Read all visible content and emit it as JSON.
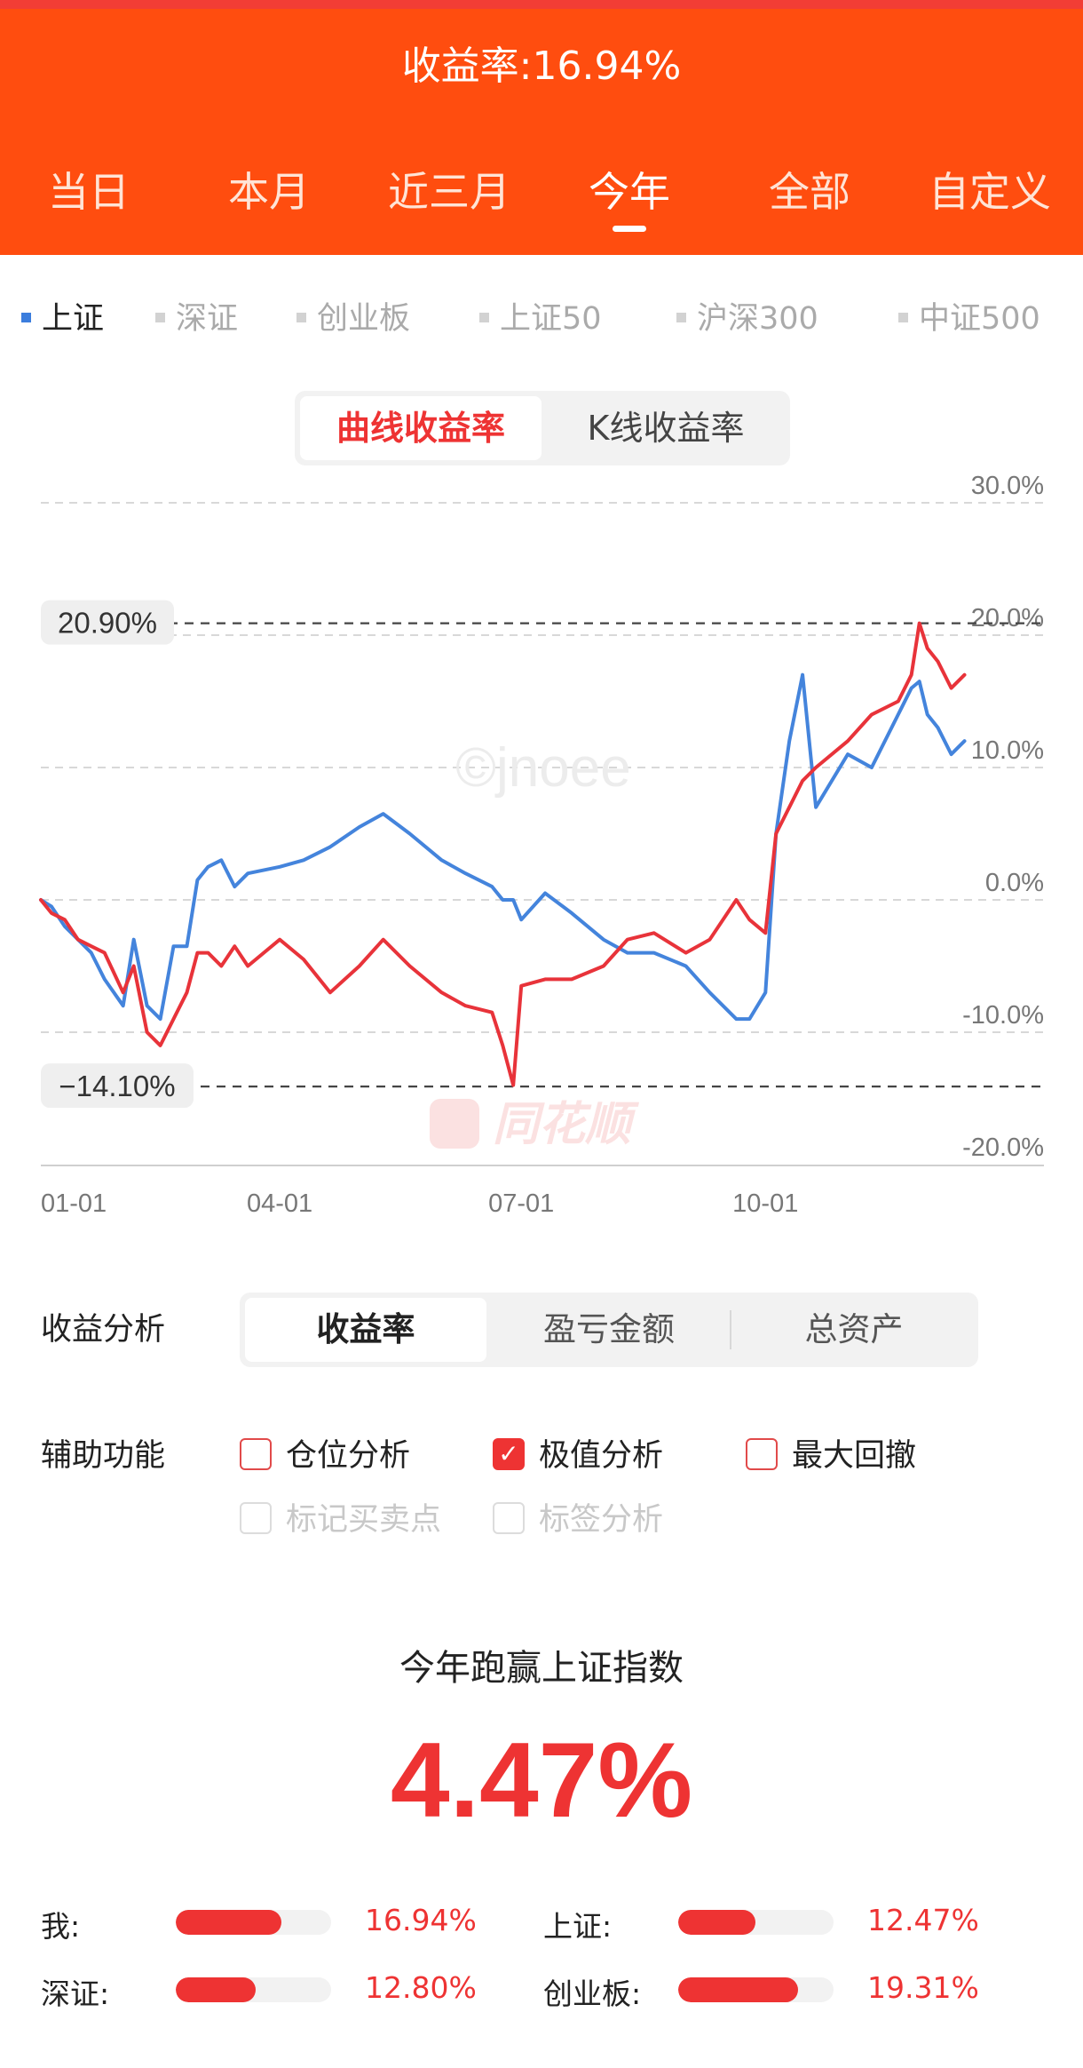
{
  "header": {
    "title": "收益率:16.94%",
    "tabs": [
      "当日",
      "本月",
      "近三月",
      "今年",
      "全部",
      "自定义"
    ],
    "active_tab": "今年"
  },
  "index_tabs": [
    "上证",
    "深证",
    "创业板",
    "上证50",
    "沪深300",
    "中证500"
  ],
  "active_index": "上证",
  "chart_mode": {
    "options": [
      "曲线收益率",
      "K线收益率"
    ],
    "active": "曲线收益率"
  },
  "chart_data": {
    "type": "line",
    "x_ticks": [
      "01-01",
      "04-01",
      "07-01",
      "10-01"
    ],
    "y_ticks": [
      "30.0%",
      "20.0%",
      "10.0%",
      "0.0%",
      "-10.0%",
      "-20.0%"
    ],
    "ylim": [
      -20,
      30
    ],
    "markers": [
      {
        "label": "20.90%",
        "value": 20.9
      },
      {
        "label": "−14.10%",
        "value": -14.1
      }
    ],
    "watermark": "©jnoee",
    "logo_text": "同花顺",
    "series": [
      {
        "color": "#e8333a",
        "x": [
          "01-01",
          "01-05",
          "01-10",
          "01-15",
          "01-20",
          "01-25",
          "02-01",
          "02-05",
          "02-10",
          "02-15",
          "02-20",
          "02-25",
          "03-01",
          "03-05",
          "03-10",
          "03-15",
          "03-20",
          "04-01",
          "04-10",
          "04-20",
          "05-01",
          "05-10",
          "05-20",
          "06-01",
          "06-10",
          "06-20",
          "06-24",
          "06-28",
          "07-01",
          "07-10",
          "07-20",
          "08-01",
          "08-10",
          "08-20",
          "09-01",
          "09-10",
          "09-20",
          "09-25",
          "10-01",
          "10-05",
          "10-10",
          "10-15",
          "10-20",
          "11-01",
          "11-10",
          "11-20",
          "11-25",
          "11-28",
          "12-01",
          "12-05",
          "12-10",
          "12-15"
        ],
        "y": [
          0,
          -1,
          -1.5,
          -3,
          -3.5,
          -4,
          -7,
          -5,
          -10,
          -11,
          -9,
          -7,
          -4,
          -4,
          -5,
          -3.5,
          -5,
          -3,
          -4.5,
          -7,
          -5,
          -3,
          -5,
          -7,
          -8,
          -8.5,
          -11,
          -14,
          -6.5,
          -6,
          -6,
          -5,
          -3,
          -2.5,
          -4,
          -3,
          0,
          -1.5,
          -2.5,
          5,
          7,
          9,
          10,
          12,
          14,
          15,
          17,
          20.9,
          19,
          18,
          16,
          17
        ]
      },
      {
        "color": "#4484dc",
        "x": [
          "01-01",
          "01-05",
          "01-10",
          "01-15",
          "01-20",
          "01-25",
          "02-01",
          "02-05",
          "02-10",
          "02-15",
          "02-20",
          "02-25",
          "03-01",
          "03-05",
          "03-10",
          "03-15",
          "03-20",
          "04-01",
          "04-10",
          "04-20",
          "05-01",
          "05-10",
          "05-20",
          "06-01",
          "06-10",
          "06-20",
          "06-24",
          "06-28",
          "07-01",
          "07-10",
          "07-20",
          "08-01",
          "08-10",
          "08-20",
          "09-01",
          "09-10",
          "09-20",
          "09-25",
          "10-01",
          "10-05",
          "10-10",
          "10-15",
          "10-20",
          "11-01",
          "11-10",
          "11-20",
          "11-25",
          "11-28",
          "12-01",
          "12-05",
          "12-10",
          "12-15"
        ],
        "y": [
          0,
          -0.5,
          -2,
          -3,
          -4,
          -6,
          -8,
          -3,
          -8,
          -9,
          -3.5,
          -3.5,
          1.5,
          2.5,
          3,
          1,
          2,
          2.5,
          3,
          4,
          5.5,
          6.5,
          5,
          3,
          2,
          1,
          0,
          0,
          -1.5,
          0.5,
          -1,
          -3,
          -4,
          -4,
          -5,
          -7,
          -9,
          -9,
          -7,
          5,
          12,
          17,
          7,
          11,
          10,
          14,
          16,
          16.5,
          14,
          13,
          11,
          12
        ]
      }
    ]
  },
  "analysis": {
    "label": "收益分析",
    "options": [
      "收益率",
      "盈亏金额",
      "总资产"
    ],
    "active": "收益率"
  },
  "aux": {
    "label": "辅助功能",
    "items": [
      {
        "text": "仓位分析",
        "checked": false,
        "disabled": false
      },
      {
        "text": "极值分析",
        "checked": true,
        "disabled": false
      },
      {
        "text": "最大回撤",
        "checked": false,
        "disabled": false
      },
      {
        "text": "标记买卖点",
        "checked": false,
        "disabled": true
      },
      {
        "text": "标签分析",
        "checked": false,
        "disabled": true
      }
    ]
  },
  "beat": {
    "title": "今年跑赢上证指数",
    "value": "4.47%"
  },
  "comparison": [
    {
      "label": "我:",
      "value": "16.94%",
      "pct": 16.94
    },
    {
      "label": "上证:",
      "value": "12.47%",
      "pct": 12.47
    },
    {
      "label": "深证:",
      "value": "12.80%",
      "pct": 12.8
    },
    {
      "label": "创业板:",
      "value": "19.31%",
      "pct": 19.31
    }
  ]
}
